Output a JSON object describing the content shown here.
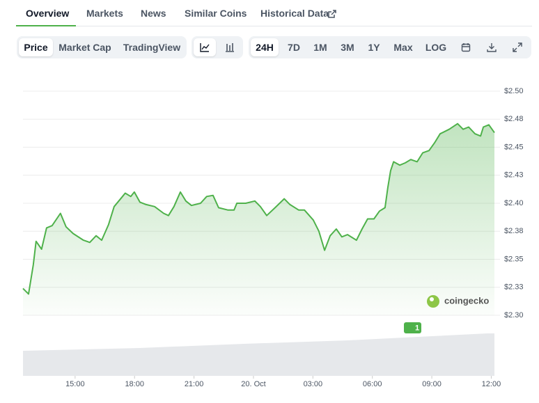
{
  "tabs": [
    "Overview",
    "Markets",
    "News",
    "Similar Coins",
    "Historical Data"
  ],
  "chart_views": [
    "Price",
    "Market Cap",
    "TradingView"
  ],
  "ranges": [
    "24H",
    "7D",
    "1M",
    "3M",
    "1Y",
    "Max",
    "LOG"
  ],
  "watermark": "coingecko",
  "news_marker": "1",
  "chart_data": {
    "type": "area",
    "color": "#4eb14a",
    "grid": true,
    "xlim": [
      -11.63,
      12.16
    ],
    "xticks": [
      {
        "value": -9,
        "label": "15:00"
      },
      {
        "value": -6,
        "label": "18:00"
      },
      {
        "value": -3,
        "label": "21:00"
      },
      {
        "value": 0,
        "label": "20. Oct"
      },
      {
        "value": 3,
        "label": "03:00"
      },
      {
        "value": 6,
        "label": "06:00"
      },
      {
        "value": 9,
        "label": "09:00"
      },
      {
        "value": 12,
        "label": "12:00"
      }
    ],
    "ylim": [
      2.3,
      2.5
    ],
    "yticks": [
      {
        "value": 2.3,
        "label": "$2.30"
      },
      {
        "value": 2.325,
        "label": "$2.33"
      },
      {
        "value": 2.35,
        "label": "$2.35"
      },
      {
        "value": 2.375,
        "label": "$2.38"
      },
      {
        "value": 2.4,
        "label": "$2.40"
      },
      {
        "value": 2.425,
        "label": "$2.43"
      },
      {
        "value": 2.45,
        "label": "$2.45"
      },
      {
        "value": 2.475,
        "label": "$2.48"
      },
      {
        "value": 2.5,
        "label": "$2.50"
      }
    ],
    "x": [
      -11.63,
      -11.35,
      -11.11,
      -10.97,
      -10.69,
      -10.44,
      -10.16,
      -9.74,
      -9.46,
      -9.1,
      -8.58,
      -8.26,
      -7.94,
      -7.66,
      -7.31,
      -7.03,
      -6.61,
      -6.47,
      -6.19,
      -6.01,
      -5.73,
      -5.45,
      -4.99,
      -4.53,
      -4.29,
      -4.01,
      -3.69,
      -3.41,
      -3.13,
      -2.67,
      -2.36,
      -2.04,
      -1.76,
      -1.3,
      -0.98,
      -0.84,
      -0.39,
      0.07,
      0.35,
      0.67,
      1.09,
      1.55,
      1.83,
      2.28,
      2.57,
      3.02,
      3.3,
      3.59,
      3.87,
      4.18,
      4.46,
      4.75,
      5.2,
      5.48,
      5.76,
      6.08,
      6.36,
      6.64,
      6.78,
      6.92,
      7.07,
      7.38,
      7.66,
      7.94,
      8.26,
      8.54,
      8.86,
      9.14,
      9.42,
      9.88,
      10.3,
      10.58,
      10.86,
      11.18,
      11.46,
      11.6,
      11.88,
      12.16
    ],
    "values": [
      2.324,
      2.319,
      2.345,
      2.366,
      2.359,
      2.378,
      2.38,
      2.391,
      2.379,
      2.373,
      2.367,
      2.365,
      2.371,
      2.367,
      2.381,
      2.397,
      2.406,
      2.409,
      2.406,
      2.41,
      2.401,
      2.399,
      2.397,
      2.391,
      2.389,
      2.397,
      2.41,
      2.402,
      2.398,
      2.4,
      2.406,
      2.407,
      2.396,
      2.394,
      2.394,
      2.4,
      2.4,
      2.402,
      2.397,
      2.389,
      2.396,
      2.404,
      2.399,
      2.394,
      2.394,
      2.385,
      2.375,
      2.358,
      2.371,
      2.377,
      2.37,
      2.372,
      2.367,
      2.377,
      2.386,
      2.386,
      2.393,
      2.396,
      2.414,
      2.429,
      2.437,
      2.434,
      2.436,
      2.439,
      2.437,
      2.445,
      2.447,
      2.454,
      2.462,
      2.466,
      2.471,
      2.466,
      2.468,
      2.462,
      2.46,
      2.468,
      2.47,
      2.463
    ]
  }
}
